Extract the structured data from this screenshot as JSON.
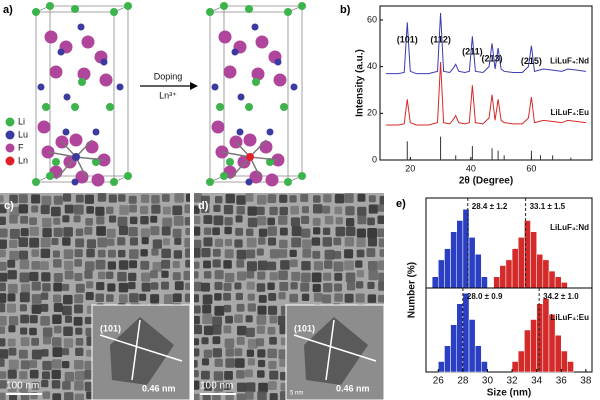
{
  "panel_labels": [
    "a)",
    "b)",
    "c)",
    "d)",
    "e)"
  ],
  "structure": {
    "legend": [
      {
        "label": "Li",
        "color": "#3cb44b"
      },
      {
        "label": "Lu",
        "color": "#3a3aa0"
      },
      {
        "label": "F",
        "color": "#b0459c"
      },
      {
        "label": "Ln",
        "color": "#e0202a"
      }
    ],
    "arrow_label": "Doping",
    "arrow_sublabel": "Ln³⁺"
  },
  "micrographs": [
    {
      "scale_bar": "100 nm",
      "plane": "(101)",
      "spacing": "0.46 nm"
    },
    {
      "scale_bar": "100 nm",
      "plane": "(101)",
      "spacing": "0.46 nm",
      "inset_scale": "5 nm"
    }
  ],
  "chart_data": [
    {
      "type": "line",
      "xlabel": "2θ (Degree)",
      "ylabel": "Intensity (a.u.)",
      "x": [
        12,
        16,
        18,
        19,
        20,
        22,
        26,
        29,
        30,
        31,
        33,
        34,
        35,
        36,
        38,
        39.5,
        40.5,
        41.5,
        44,
        46,
        47,
        48,
        49,
        50,
        51,
        54,
        57,
        59,
        60,
        61,
        64,
        67,
        70,
        72,
        75,
        78
      ],
      "series": [
        {
          "name": "LiLuF₄:Nd",
          "color": "#3b3bb0",
          "values": [
            37,
            37,
            37.5,
            59,
            38,
            37,
            37,
            38,
            63,
            38,
            37.5,
            39,
            41,
            38,
            37.5,
            38,
            53,
            38,
            37.5,
            40,
            50,
            39,
            48,
            39,
            38,
            37.5,
            37.5,
            40,
            49,
            38,
            39,
            38.5,
            38,
            39,
            38.5,
            38
          ]
        },
        {
          "name": "LiLuF₄:Eu",
          "color": "#d42a2a",
          "values": [
            15,
            15,
            15.5,
            26,
            16,
            15,
            15,
            16,
            42,
            16,
            15.5,
            17,
            19,
            16,
            15.5,
            16,
            32,
            16,
            15.5,
            18,
            28,
            17,
            26,
            17,
            16,
            15.5,
            15.5,
            18,
            27,
            16,
            17,
            16.5,
            16,
            17,
            16.5,
            16
          ]
        }
      ],
      "reference": {
        "color": "#333333",
        "x": [
          19,
          30,
          35,
          40.5,
          47,
          49,
          51,
          60,
          63,
          67,
          73
        ],
        "values": [
          8,
          10,
          2,
          6,
          5,
          4,
          2,
          4,
          2,
          2,
          1
        ]
      },
      "peak_labels": [
        {
          "text": "(101)",
          "x": 19
        },
        {
          "text": "(112)",
          "x": 30
        },
        {
          "text": "(211)",
          "x": 40.5
        },
        {
          "text": "(213)",
          "x": 47
        },
        {
          "text": "(215)",
          "x": 60
        }
      ],
      "xlim": [
        10,
        80
      ],
      "ylim": [
        0,
        66
      ],
      "xticks": [
        20,
        40,
        60
      ],
      "yticks": [
        0,
        20,
        40,
        60
      ]
    },
    {
      "type": "histogram",
      "label": "LiLuF₄:Nd",
      "ylabel": "Number (%)",
      "series": [
        {
          "color": "#2b3fc4",
          "bins": [
            25.5,
            26,
            26.5,
            27,
            27.5,
            28,
            28.5,
            29,
            29.5,
            30
          ],
          "values": [
            2,
            5,
            7,
            10,
            12,
            14,
            9,
            6,
            2
          ]
        },
        {
          "color": "#d42a2a",
          "bins": [
            30.5,
            31,
            31.5,
            32,
            32.5,
            33,
            33.5,
            34,
            34.5,
            35,
            35.5,
            36,
            36.5
          ],
          "values": [
            2,
            4,
            5,
            7,
            9,
            12,
            10,
            6,
            5,
            3,
            2,
            1
          ]
        }
      ],
      "means": [
        {
          "value": 28.4,
          "label": "28.4 ± 1.2"
        },
        {
          "value": 33.1,
          "label": "33.1 ± 1.5"
        }
      ],
      "xlim": [
        25,
        38.5
      ],
      "ylim": [
        0,
        16
      ]
    },
    {
      "type": "histogram",
      "label": "LiLuF₄:Eu",
      "xlabel": "Size (nm)",
      "series": [
        {
          "color": "#2b3fc4",
          "bins": [
            26,
            26.5,
            27,
            27.5,
            28,
            28.5,
            29,
            29.5,
            30
          ],
          "values": [
            2,
            5,
            9,
            13,
            15,
            10,
            5,
            2
          ]
        },
        {
          "color": "#d42a2a",
          "bins": [
            32,
            32.5,
            33,
            33.5,
            34,
            34.5,
            35,
            35.5,
            36,
            36.5,
            37
          ],
          "values": [
            2,
            4,
            8,
            10,
            13,
            14,
            11,
            7,
            4,
            2
          ]
        }
      ],
      "means": [
        {
          "value": 28.0,
          "label": "28.0 ± 0.9"
        },
        {
          "value": 34.2,
          "label": "34.2 ± 1.0"
        }
      ],
      "xlim": [
        25,
        38.5
      ],
      "ylim": [
        0,
        16
      ],
      "xticks": [
        26,
        28,
        30,
        32,
        34,
        36,
        38
      ]
    }
  ]
}
